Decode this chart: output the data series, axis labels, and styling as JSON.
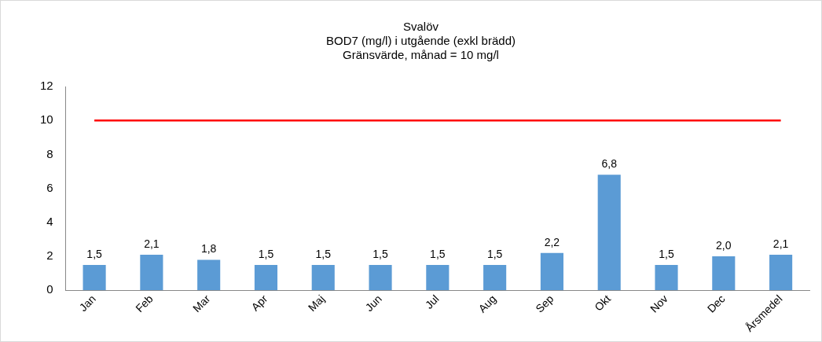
{
  "chart_data": {
    "type": "bar",
    "title": "Svalöv",
    "subtitle": "BOD7 (mg/l) i utgående (exkl brädd)\nGränsvärde, månad = 10 mg/l",
    "categories": [
      "Jan",
      "Feb",
      "Mar",
      "Apr",
      "Maj",
      "Jun",
      "Jul",
      "Aug",
      "Sep",
      "Okt",
      "Nov",
      "Dec",
      "Årsmedel"
    ],
    "values": [
      1.5,
      2.1,
      1.8,
      1.5,
      1.5,
      1.5,
      1.5,
      1.5,
      2.2,
      6.8,
      1.5,
      2.0,
      2.1
    ],
    "value_labels": [
      "1,5",
      "2,1",
      "1,8",
      "1,5",
      "1,5",
      "1,5",
      "1,5",
      "1,5",
      "2,2",
      "6,8",
      "1,5",
      "2,0",
      "2,1"
    ],
    "color": "#5b9bd5",
    "ylim": [
      0,
      12
    ],
    "yticks": [
      0,
      2,
      4,
      6,
      8,
      10,
      12
    ],
    "grid": false,
    "legend": false,
    "ref_lines": [
      {
        "axis": "y",
        "value": 10,
        "color": "#ff0000"
      }
    ]
  }
}
